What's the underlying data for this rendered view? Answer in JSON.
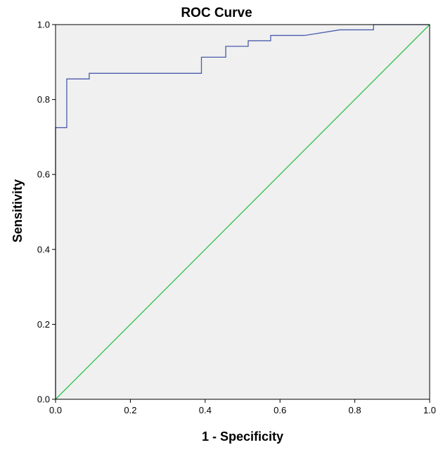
{
  "chart_data": {
    "type": "line",
    "title": "ROC Curve",
    "xlabel": "1 - Specificity",
    "ylabel": "Sensitivity",
    "xlim": [
      0,
      1
    ],
    "ylim": [
      0,
      1
    ],
    "x_ticks": [
      "0.0",
      "0.2",
      "0.4",
      "0.6",
      "0.8",
      "1.0"
    ],
    "y_ticks": [
      "0.0",
      "0.2",
      "0.4",
      "0.6",
      "0.8",
      "1.0"
    ],
    "grid": false,
    "plot_background": "#f0f0f0",
    "series": [
      {
        "color": "#4a5cab",
        "x": [
          0.0,
          0.0,
          0.03,
          0.03,
          0.09,
          0.09,
          0.39,
          0.39,
          0.455,
          0.455,
          0.515,
          0.515,
          0.575,
          0.575,
          0.665,
          0.76,
          0.85,
          0.85,
          1.0
        ],
        "y": [
          0.0,
          0.725,
          0.725,
          0.855,
          0.855,
          0.87,
          0.87,
          0.913,
          0.913,
          0.942,
          0.942,
          0.957,
          0.957,
          0.971,
          0.971,
          0.986,
          0.986,
          1.0,
          1.0
        ]
      },
      {
        "color": "#2ec24a",
        "x": [
          0,
          1
        ],
        "y": [
          0,
          1
        ]
      }
    ]
  }
}
